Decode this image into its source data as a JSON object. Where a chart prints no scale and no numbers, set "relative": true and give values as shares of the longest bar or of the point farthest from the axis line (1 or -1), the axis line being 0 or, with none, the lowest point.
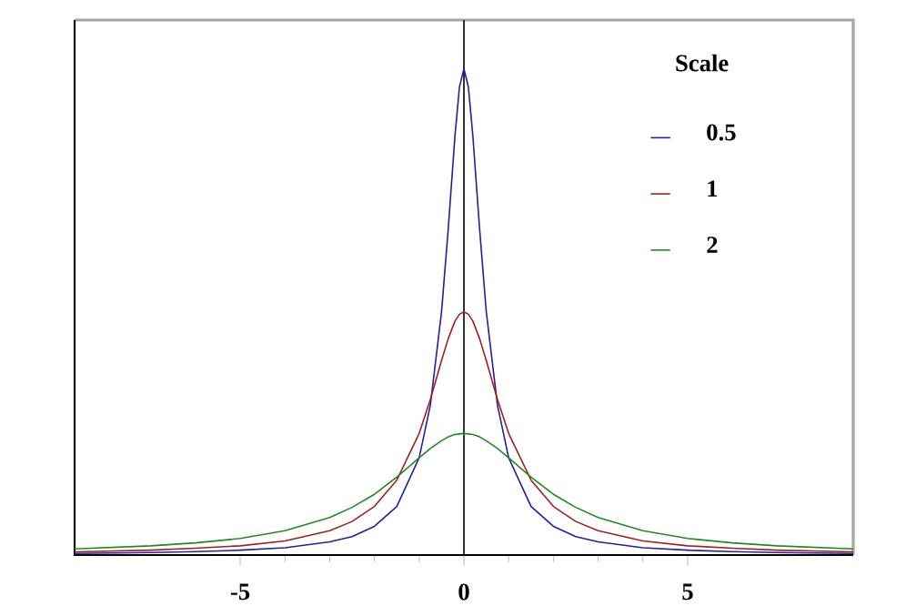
{
  "chart_data": {
    "type": "line",
    "relative": true,
    "legend_title": "Scale",
    "legend": "top right",
    "xlim": [
      -8.7,
      8.7
    ],
    "xticks": [
      -5,
      0,
      5
    ],
    "grid": false,
    "ref_lines": [
      {
        "axis": "x",
        "value": 0,
        "color": "#000000"
      }
    ],
    "x": [
      -8.7,
      -7,
      -6,
      -5,
      -4,
      -3,
      -2.5,
      -2,
      -1.5,
      -1,
      -0.75,
      -0.5,
      -0.35,
      -0.2,
      -0.1,
      0,
      0.1,
      0.2,
      0.35,
      0.5,
      0.75,
      1,
      1.5,
      2,
      2.5,
      3,
      4,
      5,
      6,
      7,
      8.7
    ],
    "series": [
      {
        "name": "0.5",
        "color": "#2020a0",
        "values": [
          0.0033,
          0.0051,
          0.0069,
          0.01,
          0.015,
          0.027,
          0.038,
          0.059,
          0.1,
          0.2,
          0.308,
          0.5,
          0.671,
          0.862,
          0.962,
          1,
          0.962,
          0.862,
          0.671,
          0.5,
          0.308,
          0.2,
          0.1,
          0.059,
          0.038,
          0.027,
          0.015,
          0.01,
          0.0069,
          0.0051,
          0.0033
        ]
      },
      {
        "name": "1",
        "color": "#a02020",
        "values": [
          0.0065,
          0.01,
          0.014,
          0.019,
          0.029,
          0.05,
          0.069,
          0.1,
          0.154,
          0.25,
          0.32,
          0.4,
          0.445,
          0.481,
          0.495,
          0.5,
          0.495,
          0.481,
          0.445,
          0.4,
          0.32,
          0.25,
          0.154,
          0.1,
          0.069,
          0.05,
          0.029,
          0.019,
          0.014,
          0.01,
          0.0065
        ]
      },
      {
        "name": "2",
        "color": "#208a20",
        "values": [
          0.0125,
          0.019,
          0.025,
          0.034,
          0.05,
          0.077,
          0.098,
          0.125,
          0.16,
          0.2,
          0.219,
          0.235,
          0.243,
          0.248,
          0.249,
          0.25,
          0.249,
          0.248,
          0.243,
          0.235,
          0.219,
          0.2,
          0.16,
          0.125,
          0.098,
          0.077,
          0.05,
          0.034,
          0.025,
          0.019,
          0.0125
        ]
      }
    ]
  }
}
